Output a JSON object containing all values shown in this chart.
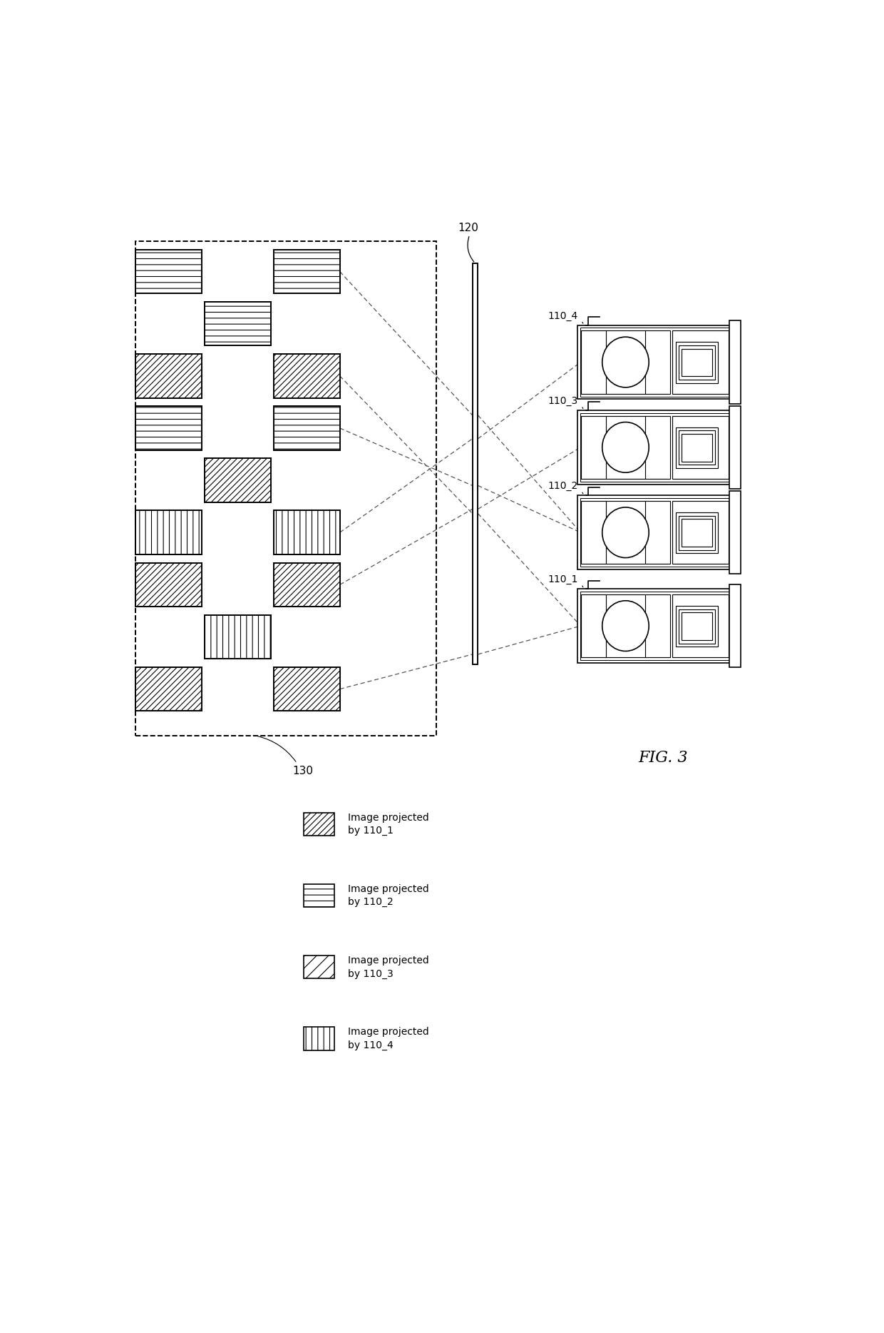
{
  "fig_width": 12.4,
  "fig_height": 18.68,
  "bg_color": "#ffffff",
  "line_color": "#000000",
  "fig_label": "FIG. 3",
  "screen_label": "120",
  "panel_label": "130",
  "projector_labels": [
    "110_1",
    "110_2",
    "110_3",
    "110_4"
  ],
  "legend_entries": [
    "Image projected\nby 110_1",
    "Image projected\nby 110_2",
    "Image projected\nby 110_3",
    "Image projected\nby 110_4"
  ],
  "hatch_patterns": [
    "////",
    "--",
    "////",
    "|||"
  ]
}
